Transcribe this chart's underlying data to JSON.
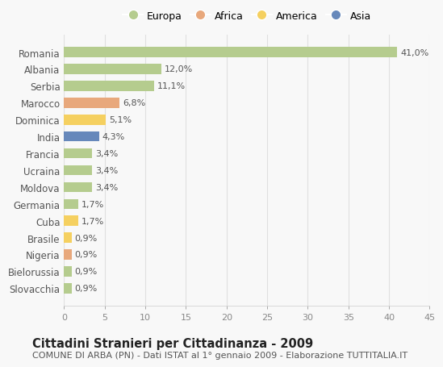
{
  "countries": [
    "Romania",
    "Albania",
    "Serbia",
    "Marocco",
    "Dominica",
    "India",
    "Francia",
    "Ucraina",
    "Moldova",
    "Germania",
    "Cuba",
    "Brasile",
    "Nigeria",
    "Bielorussia",
    "Slovacchia"
  ],
  "values": [
    41.0,
    12.0,
    11.1,
    6.8,
    5.1,
    4.3,
    3.4,
    3.4,
    3.4,
    1.7,
    1.7,
    0.9,
    0.9,
    0.9,
    0.9
  ],
  "labels": [
    "41,0%",
    "12,0%",
    "11,1%",
    "6,8%",
    "5,1%",
    "4,3%",
    "3,4%",
    "3,4%",
    "3,4%",
    "1,7%",
    "1,7%",
    "0,9%",
    "0,9%",
    "0,9%",
    "0,9%"
  ],
  "continents": [
    "Europa",
    "Europa",
    "Europa",
    "Africa",
    "America",
    "Asia",
    "Europa",
    "Europa",
    "Europa",
    "Europa",
    "America",
    "America",
    "Africa",
    "Europa",
    "Europa"
  ],
  "colors": {
    "Europa": "#b5cc8e",
    "Africa": "#e8a87c",
    "America": "#f5d060",
    "Asia": "#6688bb"
  },
  "background_color": "#f8f8f8",
  "plot_bg_color": "#f8f8f8",
  "grid_color": "#e0e0e0",
  "xlim": [
    0,
    45
  ],
  "xticks": [
    0,
    5,
    10,
    15,
    20,
    25,
    30,
    35,
    40,
    45
  ],
  "title": "Cittadini Stranieri per Cittadinanza - 2009",
  "subtitle": "COMUNE DI ARBA (PN) - Dati ISTAT al 1° gennaio 2009 - Elaborazione TUTTITALIA.IT",
  "title_fontsize": 10.5,
  "subtitle_fontsize": 8,
  "bar_height": 0.6,
  "label_fontsize": 8,
  "ytick_fontsize": 8.5,
  "xtick_fontsize": 8
}
